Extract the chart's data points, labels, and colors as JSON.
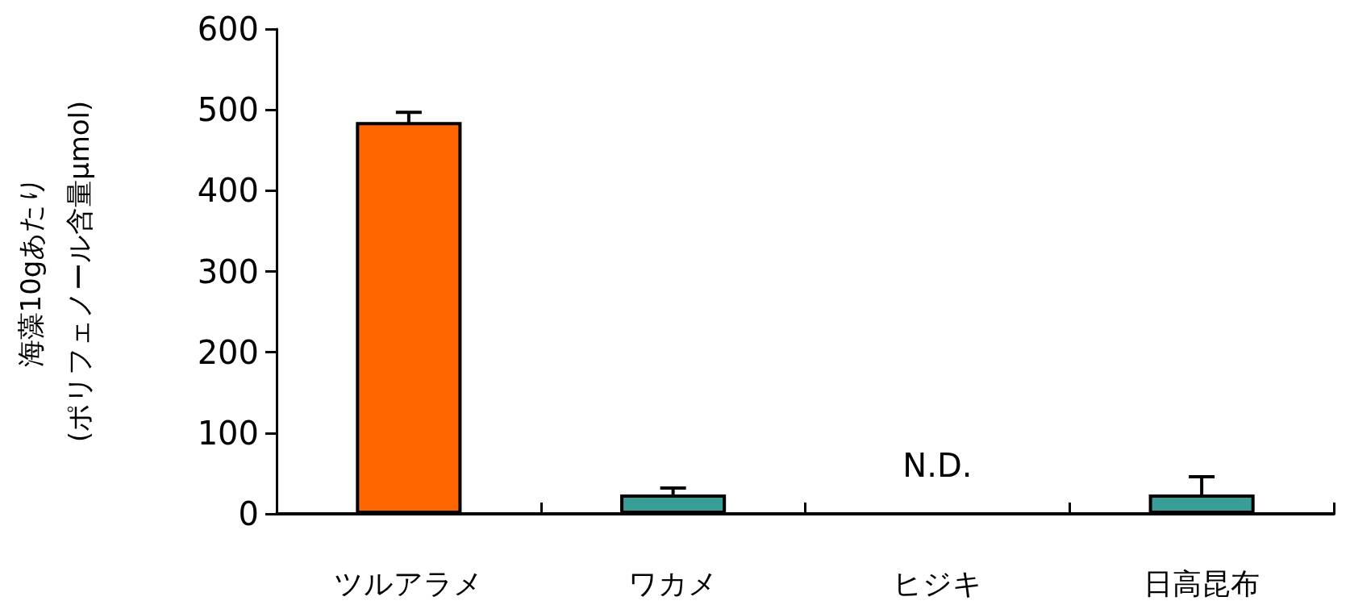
{
  "chart_data": {
    "type": "bar",
    "ylabel": "海藻10gあたり\n(ポリフェノール含量μmol)",
    "categories": [
      "ツルアラメ",
      "ワカメ",
      "ヒジキ",
      "日高昆布"
    ],
    "values": [
      485,
      24,
      null,
      24
    ],
    "colors": [
      "#ff6600",
      "#3a9e98",
      "#3a9e98",
      "#3a9e98"
    ],
    "errors": [
      12,
      8,
      null,
      22
    ],
    "value_labels": [
      null,
      null,
      "N.D.",
      null
    ],
    "ylim": [
      0,
      600
    ],
    "yticks": [
      0,
      100,
      200,
      300,
      400,
      500,
      600
    ],
    "grid": false
  }
}
